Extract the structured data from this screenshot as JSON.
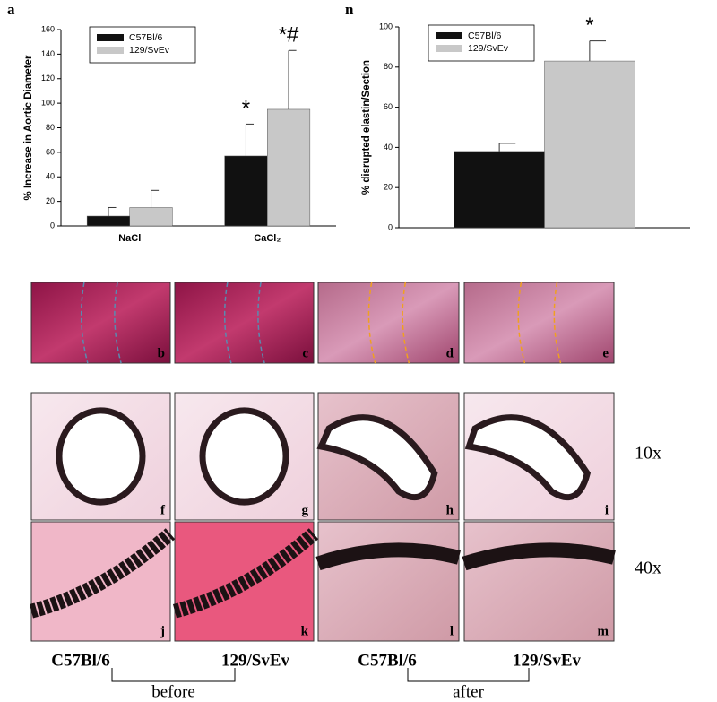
{
  "chart_data": [
    {
      "type": "bar",
      "panel_label": "a",
      "ylabel": "% Increase in Aortic Diameter",
      "categories": [
        "NaCl",
        "CaCl₂"
      ],
      "series": [
        {
          "name": "C57Bl/6",
          "color": "#111111",
          "values": [
            8,
            57
          ],
          "errors": [
            7,
            26
          ]
        },
        {
          "name": "129/SvEv",
          "color": "#c8c8c8",
          "values": [
            15,
            95
          ],
          "errors": [
            14,
            48
          ]
        }
      ],
      "ylim": [
        0,
        160
      ],
      "yticks": [
        0,
        20,
        40,
        60,
        80,
        100,
        120,
        140,
        160
      ],
      "legend": "upper left",
      "annotations": [
        "*",
        "*#"
      ]
    },
    {
      "type": "bar",
      "panel_label": "n",
      "ylabel": "% disrupted elastin/Section",
      "categories": [
        null
      ],
      "series": [
        {
          "name": "C57Bl/6",
          "color": "#111111",
          "values": [
            38
          ],
          "errors": [
            4
          ]
        },
        {
          "name": "129/SvEv",
          "color": "#c8c8c8",
          "values": [
            83
          ],
          "errors": [
            10
          ]
        }
      ],
      "ylim": [
        0,
        100
      ],
      "yticks": [
        0,
        20,
        40,
        60,
        80,
        100
      ],
      "legend": "upper left",
      "annotations": [
        "*"
      ]
    }
  ],
  "figure": {
    "panels": [
      "b",
      "c",
      "d",
      "e",
      "f",
      "g",
      "h",
      "i",
      "j",
      "k",
      "l",
      "m"
    ],
    "magnifications": [
      "10x",
      "40x"
    ],
    "strains": [
      "C57Bl/6",
      "129/SvEv",
      "C57Bl/6",
      "129/SvEv"
    ],
    "groups": [
      "before",
      "after"
    ]
  }
}
